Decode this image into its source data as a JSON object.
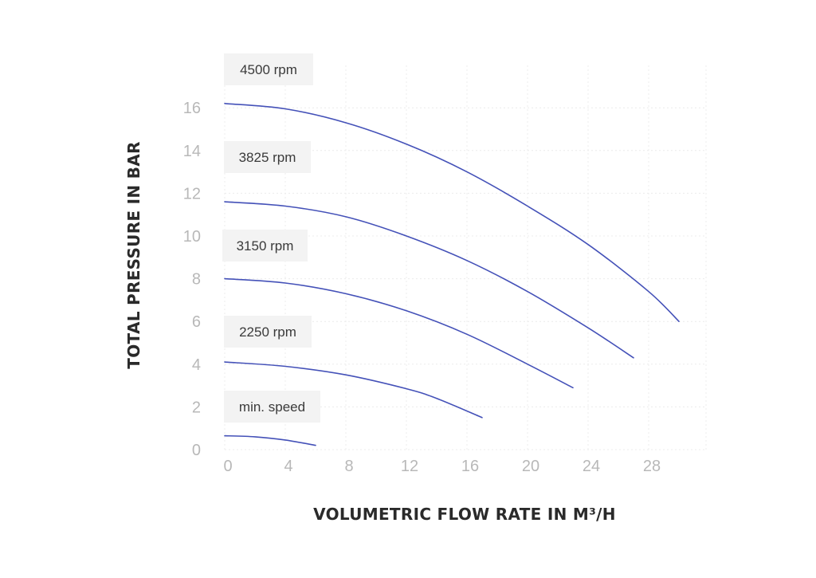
{
  "chart_data": {
    "type": "line",
    "title": "",
    "xlabel": "VOLUMETRIC FLOW RATE IN M³/H",
    "ylabel": "TOTAL PRESSURE IN BAR",
    "xlim": [
      0,
      32
    ],
    "ylim": [
      0,
      17
    ],
    "xticks": [
      0,
      4,
      8,
      12,
      16,
      20,
      24,
      28
    ],
    "yticks": [
      0,
      2,
      4,
      6,
      8,
      10,
      12,
      14,
      16
    ],
    "grid": true,
    "line_color": "#4451b8",
    "series": [
      {
        "name": "4500 rpm",
        "x": [
          0,
          4,
          8,
          12,
          16,
          20,
          24,
          28,
          30
        ],
        "y": [
          16.2,
          15.95,
          15.3,
          14.3,
          13.0,
          11.4,
          9.6,
          7.4,
          6.0
        ]
      },
      {
        "name": "3825 rpm",
        "x": [
          0,
          4,
          8,
          12,
          16,
          20,
          24,
          27
        ],
        "y": [
          11.6,
          11.4,
          10.9,
          10.0,
          8.85,
          7.4,
          5.7,
          4.3
        ]
      },
      {
        "name": "3150 rpm",
        "x": [
          0,
          4,
          8,
          12,
          16,
          20,
          23
        ],
        "y": [
          8.0,
          7.8,
          7.3,
          6.5,
          5.4,
          4.0,
          2.9
        ]
      },
      {
        "name": "2250 rpm",
        "x": [
          0,
          4,
          8,
          12,
          14,
          17
        ],
        "y": [
          4.1,
          3.9,
          3.5,
          2.85,
          2.4,
          1.5
        ]
      },
      {
        "name": "min. speed",
        "x": [
          0,
          2,
          4,
          6
        ],
        "y": [
          0.65,
          0.6,
          0.45,
          0.2
        ]
      }
    ]
  }
}
